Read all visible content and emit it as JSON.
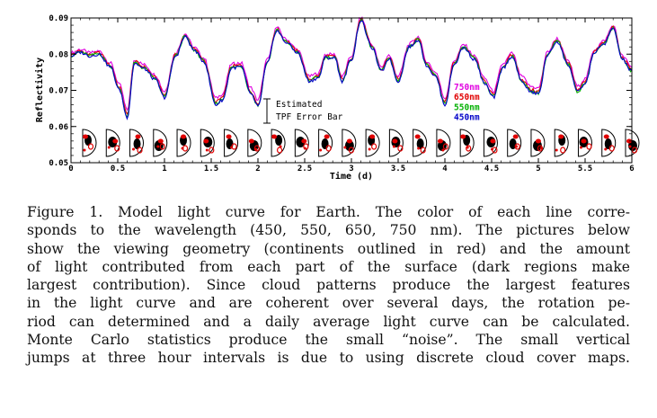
{
  "chart_data": {
    "type": "line",
    "xlabel": "Time (d)",
    "ylabel": "Reflectivity",
    "xlim": [
      0,
      6
    ],
    "ylim": [
      0.05,
      0.09
    ],
    "x_ticks": [
      "0",
      "0.5",
      "1",
      "1.5",
      "2",
      "2.5",
      "3",
      "3.5",
      "4",
      "4.5",
      "5",
      "5.5",
      "6"
    ],
    "y_ticks": [
      "0.05",
      "0.06",
      "0.07",
      "0.08",
      "0.09"
    ],
    "base_x": [
      0,
      0.1,
      0.2,
      0.3,
      0.42,
      0.52,
      0.6,
      0.68,
      0.78,
      0.9,
      1.0,
      1.12,
      1.22,
      1.32,
      1.42,
      1.55,
      1.62,
      1.72,
      1.82,
      1.92,
      2.0,
      2.1,
      2.2,
      2.3,
      2.42,
      2.55,
      2.65,
      2.72,
      2.82,
      2.9,
      3.0,
      3.1,
      3.22,
      3.32,
      3.4,
      3.5,
      3.62,
      3.72,
      3.8,
      3.9,
      4.0,
      4.1,
      4.2,
      4.32,
      4.42,
      4.52,
      4.62,
      4.72,
      4.82,
      4.92,
      5.0,
      5.1,
      5.2,
      5.32,
      5.42,
      5.5,
      5.6,
      5.7,
      5.8,
      5.9,
      6.0
    ],
    "base_y": [
      0.0795,
      0.0805,
      0.0795,
      0.08,
      0.0765,
      0.07,
      0.0625,
      0.0775,
      0.076,
      0.073,
      0.068,
      0.0795,
      0.0848,
      0.081,
      0.078,
      0.066,
      0.0673,
      0.0762,
      0.0765,
      0.0692,
      0.0655,
      0.0775,
      0.0865,
      0.0833,
      0.0805,
      0.0725,
      0.0735,
      0.079,
      0.079,
      0.0725,
      0.0785,
      0.0893,
      0.0818,
      0.0752,
      0.0788,
      0.0725,
      0.082,
      0.084,
      0.077,
      0.0738,
      0.066,
      0.0772,
      0.0818,
      0.0785,
      0.072,
      0.068,
      0.0762,
      0.0794,
      0.0725,
      0.0695,
      0.069,
      0.0798,
      0.0835,
      0.077,
      0.0695,
      0.0718,
      0.0805,
      0.0828,
      0.087,
      0.0785,
      0.0752
    ],
    "series": [
      {
        "name": "750nm",
        "color": "#e000e0",
        "offset": 0.0014
      },
      {
        "name": "650nm",
        "color": "#e00000",
        "offset": 0.0006
      },
      {
        "name": "550nm",
        "color": "#00b000",
        "offset": 0.0002
      },
      {
        "name": "450nm",
        "color": "#0000c8",
        "offset": 0.0
      }
    ],
    "annotation": [
      "Estimated",
      "TPF Error Bar"
    ],
    "globe_count": 24
  },
  "caption_lines": [
    "Figure 1.    Model light curve for Earth. The color of each line corre-",
    "sponds to the wavelength (450, 550, 650, 750 nm). The pictures below",
    "show the viewing geometry (continents outlined in red) and the amount",
    "of light contributed from each part of the surface (dark regions make",
    "largest contribution). Since cloud patterns produce the largest features",
    "in the light curve and are coherent over several days, the rotation pe-",
    "riod can determined and a daily average light curve can be calculated.",
    "Monte Carlo statistics produce the small “noise”.  The small vertical",
    "jumps at three hour intervals is due to using discrete cloud cover maps."
  ]
}
